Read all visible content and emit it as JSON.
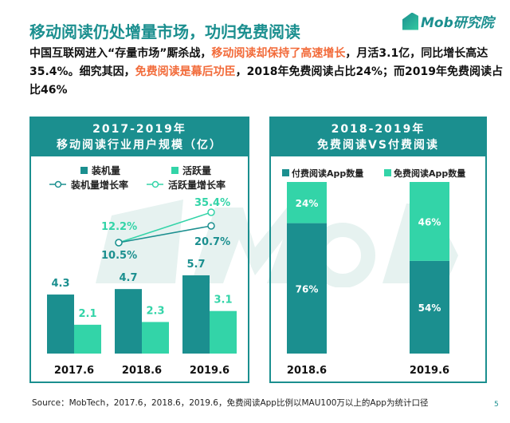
{
  "header": {
    "title": "移动阅读仍处增量市场，功归免费阅读",
    "logo": "Mob研究院",
    "watermark": "MobTech"
  },
  "intro": {
    "p1": "中国互联网进入“存量市场”厮杀战，",
    "h1": "移动阅读却保持了高速增长",
    "p2": "，月活3.1亿，同比增长高达35.4%。细究其因，",
    "h2": "免费阅读是幕后功臣",
    "p3": "，2018年免费阅读占比24%；而2019年免费阅读占比46%"
  },
  "colors": {
    "dark": "#1b8f8f",
    "light": "#33d4a8",
    "highlight": "#f26b3a"
  },
  "chart_data": [
    {
      "type": "bar",
      "title": "2017-2019年",
      "subtitle": "移动阅读行业用户规模（亿）",
      "categories": [
        "2017.6",
        "2018.6",
        "2019.6"
      ],
      "series": [
        {
          "name": "装机量",
          "values": [
            4.3,
            4.7,
            5.7
          ],
          "labels": [
            "4.3",
            "4.7",
            "5.7"
          ]
        },
        {
          "name": "活跃量",
          "values": [
            2.1,
            2.3,
            3.1
          ],
          "labels": [
            "2.1",
            "2.3",
            "3.1"
          ]
        }
      ],
      "lines": [
        {
          "name": "装机量增长率",
          "x": [
            "2018.6",
            "2019.6"
          ],
          "values": [
            10.5,
            20.7
          ],
          "labels": [
            "10.5%",
            "20.7%"
          ]
        },
        {
          "name": "活跃量增长率",
          "x": [
            "2018.6",
            "2019.6"
          ],
          "values": [
            12.2,
            35.4
          ],
          "labels": [
            "12.2%",
            "35.4%"
          ]
        }
      ]
    },
    {
      "type": "bar",
      "stacked": true,
      "title": "2018-2019年",
      "subtitle": "免费阅读VS付费阅读",
      "categories": [
        "2018.6",
        "2019.6"
      ],
      "series": [
        {
          "name": "付费阅读App数量",
          "values": [
            76,
            54
          ],
          "labels": [
            "76%",
            "54%"
          ]
        },
        {
          "name": "免费阅读App数量",
          "values": [
            24,
            46
          ],
          "labels": [
            "24%",
            "46%"
          ]
        }
      ]
    }
  ],
  "footer": {
    "source": "Source：MobTech，2017.6，2018.6，2019.6，免费阅读App比例以MAU100万以上的App为统计口径",
    "page": "5"
  }
}
